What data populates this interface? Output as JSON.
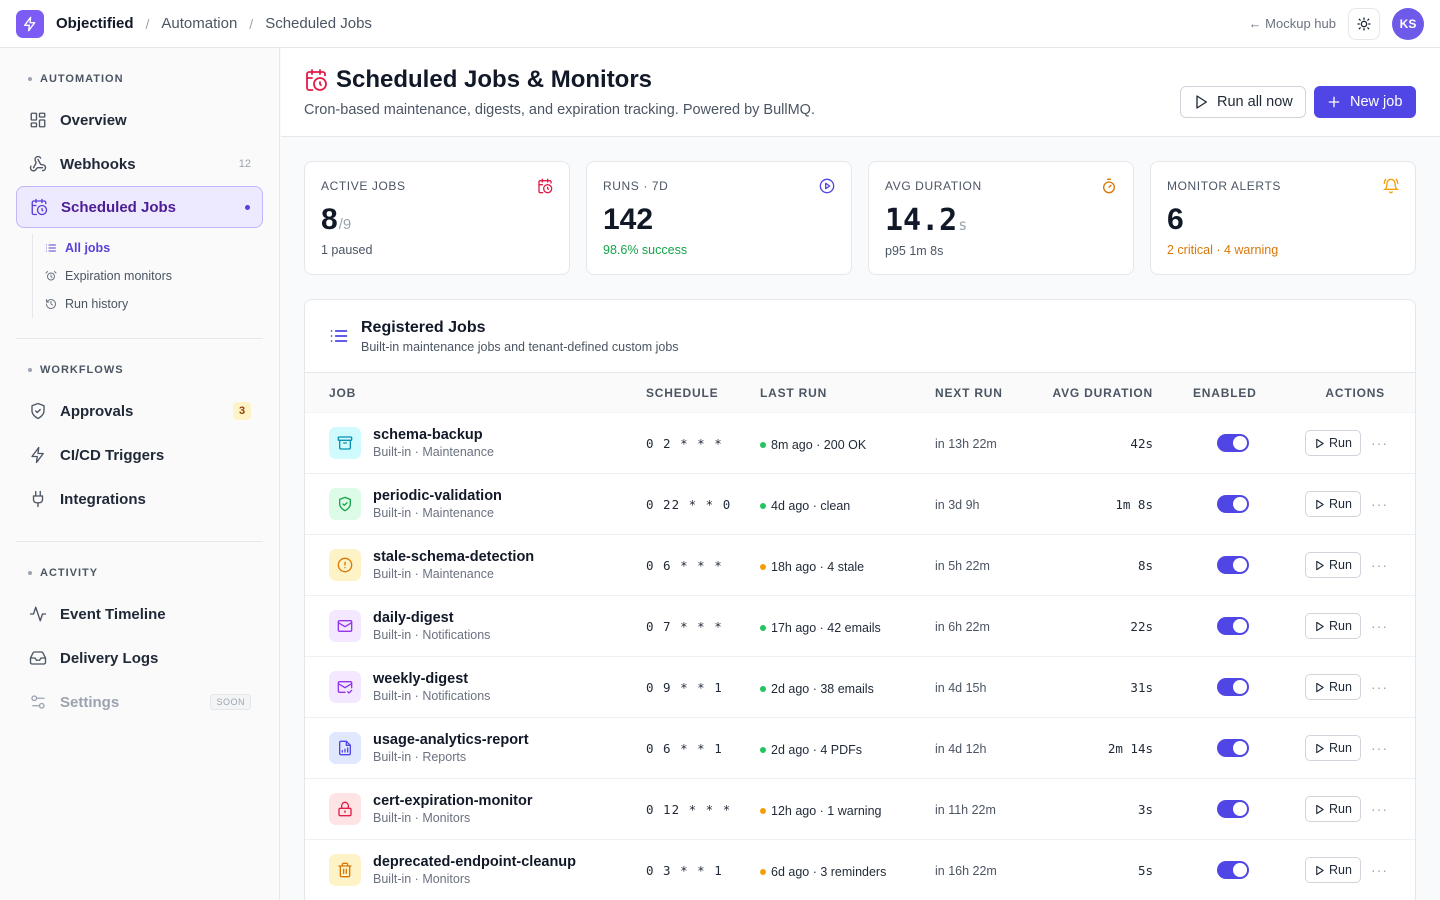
{
  "app": {
    "name": "Objectified"
  },
  "breadcrumb": [
    "Automation",
    "Scheduled Jobs"
  ],
  "topbar": {
    "hub_link": "← Mockup hub",
    "avatar_initials": "KS"
  },
  "sidebar": {
    "sections": [
      {
        "title": "AUTOMATION"
      },
      {
        "title": "WORKFLOWS"
      },
      {
        "title": "ACTIVITY"
      }
    ],
    "automation_items": [
      {
        "label": "Overview",
        "icon": "grid-icon"
      },
      {
        "label": "Webhooks",
        "icon": "webhook-icon",
        "count": "12"
      },
      {
        "label": "Scheduled Jobs",
        "icon": "calendar-clock-icon",
        "active": true
      }
    ],
    "sub_items": [
      {
        "label": "All jobs",
        "icon": "list-icon",
        "active": true
      },
      {
        "label": "Expiration monitors",
        "icon": "alarm-icon"
      },
      {
        "label": "Run history",
        "icon": "history-icon"
      }
    ],
    "workflow_items": [
      {
        "label": "Approvals",
        "icon": "shield-check-icon",
        "badge": "3"
      },
      {
        "label": "CI/CD Triggers",
        "icon": "zap-icon"
      },
      {
        "label": "Integrations",
        "icon": "plug-icon"
      }
    ],
    "activity_items": [
      {
        "label": "Event Timeline",
        "icon": "activity-icon"
      },
      {
        "label": "Delivery Logs",
        "icon": "inbox-icon"
      },
      {
        "label": "Settings",
        "icon": "sliders-icon",
        "tag": "SOON"
      }
    ]
  },
  "page": {
    "title": "Scheduled Jobs & Monitors",
    "subtitle": "Cron-based maintenance, digests, and expiration tracking. Powered by BullMQ.",
    "run_all_label": "Run all now",
    "new_job_label": "New job"
  },
  "stats": [
    {
      "label": "ACTIVE JOBS",
      "value": "8",
      "suffix": "/9",
      "foot": "1 paused",
      "foot_tone": "muted",
      "icon": "calendar-clock-icon",
      "icon_color": "#e11d48"
    },
    {
      "label": "RUNS · 7D",
      "value": "142",
      "suffix": "",
      "foot": "98.6% success",
      "foot_tone": "green",
      "icon": "play-circle-icon",
      "icon_color": "#4f46e5"
    },
    {
      "label": "AVG DURATION",
      "value": "14.2",
      "suffix": "s",
      "foot": "p95 1m 8s",
      "foot_tone": "muted",
      "icon": "timer-icon",
      "icon_color": "#d97706"
    },
    {
      "label": "MONITOR ALERTS",
      "value": "6",
      "suffix": "",
      "foot": "2 critical · 4 warning",
      "foot_tone": "amber",
      "icon": "bell-icon",
      "icon_color": "#f59e0b"
    }
  ],
  "jobs_card": {
    "title": "Registered Jobs",
    "subtitle": "Built-in maintenance jobs and tenant-defined custom jobs",
    "columns": [
      "JOB",
      "SCHEDULE",
      "LAST RUN",
      "NEXT RUN",
      "AVG DURATION",
      "ENABLED",
      "ACTIONS"
    ],
    "run_label": "Run",
    "more_label": "···",
    "rows": [
      {
        "name": "schema-backup",
        "meta": "Built-in · Maintenance",
        "icon": "archive-icon",
        "bg": "#cffafe",
        "fg": "#0891b2",
        "schedule": "0 2 * * *",
        "last": "8m ago · 200 OK",
        "status": "#22c55e",
        "next": "in 13h 22m",
        "avg": "42s",
        "enabled": true
      },
      {
        "name": "periodic-validation",
        "meta": "Built-in · Maintenance",
        "icon": "shield-check-icon",
        "bg": "#dcfce7",
        "fg": "#16a34a",
        "schedule": "0 22 * * 0",
        "last": "4d ago · clean",
        "status": "#22c55e",
        "next": "in 3d 9h",
        "avg": "1m 8s",
        "enabled": true
      },
      {
        "name": "stale-schema-detection",
        "meta": "Built-in · Maintenance",
        "icon": "alert-circle-icon",
        "bg": "#fef3c7",
        "fg": "#d97706",
        "schedule": "0 6 * * *",
        "last": "18h ago · 4 stale",
        "status": "#f59e0b",
        "next": "in 5h 22m",
        "avg": "8s",
        "enabled": true
      },
      {
        "name": "daily-digest",
        "meta": "Built-in · Notifications",
        "icon": "mail-icon",
        "bg": "#f3e8ff",
        "fg": "#9333ea",
        "schedule": "0 7 * * *",
        "last": "17h ago · 42 emails",
        "status": "#22c55e",
        "next": "in 6h 22m",
        "avg": "22s",
        "enabled": true
      },
      {
        "name": "weekly-digest",
        "meta": "Built-in · Notifications",
        "icon": "mail-check-icon",
        "bg": "#f3e8ff",
        "fg": "#9333ea",
        "schedule": "0 9 * * 1",
        "last": "2d ago · 38 emails",
        "status": "#22c55e",
        "next": "in 4d 15h",
        "avg": "31s",
        "enabled": true
      },
      {
        "name": "usage-analytics-report",
        "meta": "Built-in · Reports",
        "icon": "file-chart-icon",
        "bg": "#e0e7ff",
        "fg": "#4f46e5",
        "schedule": "0 6 * * 1",
        "last": "2d ago · 4 PDFs",
        "status": "#22c55e",
        "next": "in 4d 12h",
        "avg": "2m 14s",
        "enabled": true
      },
      {
        "name": "cert-expiration-monitor",
        "meta": "Built-in · Monitors",
        "icon": "lock-icon",
        "bg": "#ffe4e6",
        "fg": "#e11d48",
        "schedule": "0 12 * * *",
        "last": "12h ago · 1 warning",
        "status": "#f59e0b",
        "next": "in 11h 22m",
        "avg": "3s",
        "enabled": true
      },
      {
        "name": "deprecated-endpoint-cleanup",
        "meta": "Built-in · Monitors",
        "icon": "trash-icon",
        "bg": "#fef3c7",
        "fg": "#d97706",
        "schedule": "0 3 * * 1",
        "last": "6d ago · 3 reminders",
        "status": "#f59e0b",
        "next": "in 16h 22m",
        "avg": "5s",
        "enabled": true
      }
    ]
  }
}
